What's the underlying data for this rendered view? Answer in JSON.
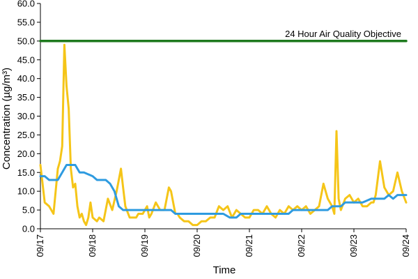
{
  "chart_data": {
    "type": "line",
    "xlabel": "Time",
    "ylabel": "Concentration (µg/m³)",
    "ylim": [
      0,
      60
    ],
    "y_ticks": [
      "0.0",
      "5.0",
      "10.0",
      "15.0",
      "20.0",
      "25.0",
      "30.0",
      "35.0",
      "40.0",
      "45.0",
      "50.0",
      "55.0",
      "60.0"
    ],
    "x_range": [
      "09/17",
      "09/24"
    ],
    "x_ticks": [
      "09/17",
      "09/18",
      "09/19",
      "09/20",
      "09/21",
      "09/22",
      "09/23",
      "09/24"
    ],
    "grid": false,
    "annotations": [
      {
        "text": "24 Hour Air Quality Objective",
        "y": 50
      }
    ],
    "series": [
      {
        "color": "#f5c518",
        "style": "hourly",
        "x": [
          "09/17 00:00",
          "09/17 02:00",
          "09/17 04:00",
          "09/17 06:00",
          "09/17 08:00",
          "09/17 09:00",
          "09/17 10:00",
          "09/17 11:00",
          "09/17 12:00",
          "09/17 13:00",
          "09/17 14:00",
          "09/17 15:00",
          "09/17 16:00",
          "09/17 17:00",
          "09/17 18:00",
          "09/17 19:00",
          "09/17 20:00",
          "09/17 21:00",
          "09/17 22:00",
          "09/17 23:00",
          "09/18 00:00",
          "09/18 02:00",
          "09/18 03:00",
          "09/18 05:00",
          "09/18 07:00",
          "09/18 09:00",
          "09/18 11:00",
          "09/18 13:00",
          "09/18 14:00",
          "09/18 15:00",
          "09/18 17:00",
          "09/18 19:00",
          "09/18 20:00",
          "09/18 21:00",
          "09/18 23:00",
          "09/19 01:00",
          "09/19 02:00",
          "09/19 03:00",
          "09/19 05:00",
          "09/19 07:00",
          "09/19 09:00",
          "09/19 11:00",
          "09/19 12:00",
          "09/19 14:00",
          "09/19 15:00",
          "09/19 16:00",
          "09/19 18:00",
          "09/19 20:00",
          "09/19 22:00",
          "09/20 00:00",
          "09/20 02:00",
          "09/20 03:00",
          "09/20 04:00",
          "09/20 06:00",
          "09/20 08:00",
          "09/20 10:00",
          "09/20 12:00",
          "09/20 14:00",
          "09/20 16:00",
          "09/20 18:00",
          "09/20 20:00",
          "09/20 22:00",
          "09/21 00:00",
          "09/21 02:00",
          "09/21 04:00",
          "09/21 06:00",
          "09/21 08:00",
          "09/21 10:00",
          "09/21 12:00",
          "09/21 14:00",
          "09/21 16:00",
          "09/21 18:00",
          "09/21 20:00",
          "09/21 22:00",
          "09/22 00:00",
          "09/22 02:00",
          "09/22 04:00",
          "09/22 06:00",
          "09/22 08:00",
          "09/22 10:00",
          "09/22 12:00",
          "09/22 14:00",
          "09/22 15:00",
          "09/22 16:00",
          "09/22 17:00",
          "09/22 18:00",
          "09/22 20:00",
          "09/22 22:00",
          "09/23 00:00",
          "09/23 02:00",
          "09/23 04:00",
          "09/23 06:00",
          "09/23 08:00",
          "09/23 09:00",
          "09/23 10:00",
          "09/23 12:00",
          "09/23 14:00",
          "09/23 16:00",
          "09/23 18:00",
          "09/23 20:00",
          "09/23 22:00",
          "09/24 00:00"
        ],
        "values": [
          17,
          7,
          6,
          4,
          16,
          18,
          22,
          49,
          38,
          32,
          16,
          11,
          12,
          6,
          3,
          4,
          2,
          1,
          3,
          7,
          3,
          2,
          3,
          2,
          8,
          5,
          10,
          16,
          11,
          6,
          3,
          3,
          3,
          4,
          4,
          6,
          3,
          4,
          7,
          5,
          5,
          11,
          10,
          4,
          4,
          3,
          2,
          2,
          1,
          1,
          2,
          2,
          2,
          3,
          3,
          6,
          5,
          6,
          3,
          5,
          4,
          3,
          3,
          5,
          5,
          4,
          6,
          4,
          3,
          5,
          4,
          6,
          5,
          6,
          5,
          6,
          4,
          5,
          6,
          12,
          8,
          6,
          4,
          26,
          8,
          5,
          8,
          9,
          7,
          8,
          6,
          6,
          7,
          7,
          9,
          18,
          11,
          9,
          10,
          15,
          10,
          7
        ]
      },
      {
        "color": "#2e9be0",
        "style": "running-24h",
        "x": [
          "09/17 00:00",
          "09/17 02:00",
          "09/17 04:00",
          "09/17 08:00",
          "09/17 10:00",
          "09/17 12:00",
          "09/17 16:00",
          "09/17 18:00",
          "09/17 20:00",
          "09/18 00:00",
          "09/18 02:00",
          "09/18 04:00",
          "09/18 06:00",
          "09/18 08:00",
          "09/18 10:00",
          "09/18 11:00",
          "09/18 12:00",
          "09/18 14:00",
          "09/18 16:00",
          "09/18 19:00",
          "09/19 01:00",
          "09/19 07:00",
          "09/19 12:00",
          "09/19 14:00",
          "09/19 16:00",
          "09/19 18:00",
          "09/19 21:00",
          "09/20 00:00",
          "09/20 06:00",
          "09/20 12:00",
          "09/20 15:00",
          "09/20 18:00",
          "09/20 20:00",
          "09/21 02:00",
          "09/21 08:00",
          "09/21 16:00",
          "09/21 18:00",
          "09/21 20:00",
          "09/22 00:00",
          "09/22 06:00",
          "09/22 12:00",
          "09/22 14:00",
          "09/22 18:00",
          "09/22 20:00",
          "09/23 00:00",
          "09/23 04:00",
          "09/23 08:00",
          "09/23 12:00",
          "09/23 14:00",
          "09/23 16:00",
          "09/23 18:00",
          "09/23 20:00",
          "09/24 00:00"
        ],
        "values": [
          14,
          14,
          13,
          13,
          15,
          17,
          17,
          15,
          15,
          14,
          13,
          13,
          13,
          12,
          10,
          8,
          6,
          5,
          5,
          5,
          5,
          5,
          5,
          4,
          4,
          4,
          4,
          4,
          4,
          4,
          3,
          3,
          4,
          4,
          4,
          4,
          4,
          5,
          5,
          5,
          5,
          6,
          6,
          7,
          7,
          7,
          8,
          8,
          8,
          9,
          8,
          9,
          9
        ]
      },
      {
        "color": "#1e7a1e",
        "style": "objective",
        "x": [
          "09/17 00:00",
          "09/24 00:00"
        ],
        "values": [
          50,
          50
        ]
      }
    ]
  }
}
